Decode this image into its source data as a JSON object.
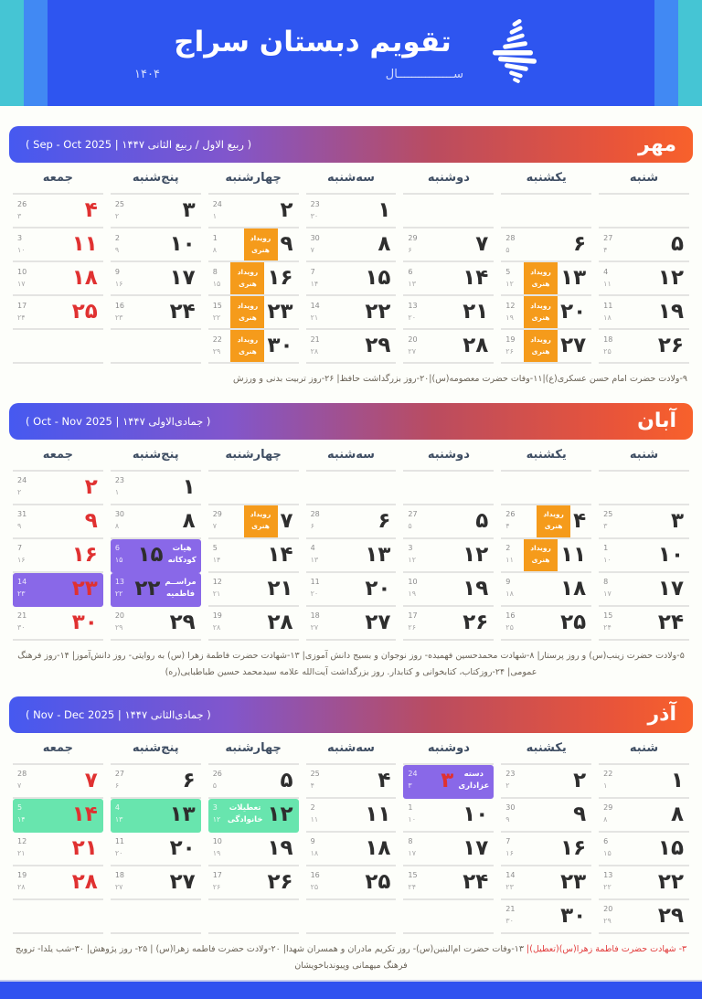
{
  "header": {
    "title": "تقویم دبستان سراج",
    "year_word": "ســــــــــــــــال",
    "year_digits": "۱۴۰۴",
    "logo": "seraj-spinning-top-logo"
  },
  "colors": {
    "header_blue": "#2E55F0",
    "stripe_teal": "#45C5D4",
    "stripe_light_blue": "#4189F3",
    "chip_orange": "#F59B1B",
    "event_purple": "#8968E8",
    "holiday_green": "#68E5AE",
    "friday_red": "#E03131",
    "footer_blue": "#3052F0"
  },
  "weekdays": [
    "شنبه",
    "یکشنبه",
    "دوشنبه",
    "سه‌شنبه",
    "چهارشنبه",
    "پنج‌شنبه",
    "جمعه"
  ],
  "chip_label": [
    "رویداد",
    "هنری"
  ],
  "months": [
    {
      "name": "مهر",
      "subtitle": "( ربیع الاول / ربیع الثانی ۱۴۴۷ | Sep - Oct 2025 )",
      "footnote_red": "",
      "footnote": "۹-ولادت حضرت امام حسن عسکری(ع)|۱۱-وفات حضرت معصومه(س)|۲۰-روز بزرگداشت حافظ| ۲۶-روز تربیت بدنی و ورزش",
      "weeks": [
        [
          null,
          null,
          null,
          {
            "d": "۱",
            "g": "23",
            "h": "۳۰"
          },
          {
            "d": "۲",
            "g": "24",
            "h": "۱"
          },
          {
            "d": "۳",
            "g": "25",
            "h": "۲"
          },
          {
            "d": "۴",
            "g": "26",
            "h": "۳",
            "red": true
          }
        ],
        [
          {
            "d": "۵",
            "g": "27",
            "h": "۴"
          },
          {
            "d": "۶",
            "g": "28",
            "h": "۵"
          },
          {
            "d": "۷",
            "g": "29",
            "h": "۶"
          },
          {
            "d": "۸",
            "g": "30",
            "h": "۷"
          },
          {
            "d": "۹",
            "g": "1",
            "h": "۸",
            "c": true
          },
          {
            "d": "۱۰",
            "g": "2",
            "h": "۹"
          },
          {
            "d": "۱۱",
            "g": "3",
            "h": "۱۰",
            "red": true
          }
        ],
        [
          {
            "d": "۱۲",
            "g": "4",
            "h": "۱۱"
          },
          {
            "d": "۱۳",
            "g": "5",
            "h": "۱۲",
            "c": true
          },
          {
            "d": "۱۴",
            "g": "6",
            "h": "۱۳"
          },
          {
            "d": "۱۵",
            "g": "7",
            "h": "۱۴"
          },
          {
            "d": "۱۶",
            "g": "8",
            "h": "۱۵",
            "c": true
          },
          {
            "d": "۱۷",
            "g": "9",
            "h": "۱۶"
          },
          {
            "d": "۱۸",
            "g": "10",
            "h": "۱۷",
            "red": true
          }
        ],
        [
          {
            "d": "۱۹",
            "g": "11",
            "h": "۱۸"
          },
          {
            "d": "۲۰",
            "g": "12",
            "h": "۱۹",
            "c": true
          },
          {
            "d": "۲۱",
            "g": "13",
            "h": "۲۰"
          },
          {
            "d": "۲۲",
            "g": "14",
            "h": "۲۱"
          },
          {
            "d": "۲۳",
            "g": "15",
            "h": "۲۲",
            "c": true
          },
          {
            "d": "۲۴",
            "g": "16",
            "h": "۲۳"
          },
          {
            "d": "۲۵",
            "g": "17",
            "h": "۲۴",
            "red": true
          }
        ],
        [
          {
            "d": "۲۶",
            "g": "18",
            "h": "۲۵"
          },
          {
            "d": "۲۷",
            "g": "19",
            "h": "۲۶",
            "c": true
          },
          {
            "d": "۲۸",
            "g": "20",
            "h": "۲۷"
          },
          {
            "d": "۲۹",
            "g": "21",
            "h": "۲۸"
          },
          {
            "d": "۳۰",
            "g": "22",
            "h": "۲۹",
            "c": true
          },
          null,
          null
        ]
      ]
    },
    {
      "name": "آبان",
      "subtitle": "( جمادی‌الاولی ۱۴۴۷ | Oct - Nov 2025 )",
      "footnote_red": "",
      "footnote": "۵-ولادت حضرت زینب(س) و روز پرستار| ۸-شهادت محمدحسین فهمیده- روز نوجوان و بسیج دانش آموزی| ۱۳-شهادت حضرت فاطمة زهرا (س) به روایتی- روز دانش‌آموز| ۱۴-روز فرهنگ عمومی| ۲۴-روزکتاب، کتابخوانی و کتابدار. روز بزرگداشت آیت‌الله علامه سیدمحمد حسین طباطبایی(ره)",
      "weeks": [
        [
          null,
          null,
          null,
          null,
          null,
          {
            "d": "۱",
            "g": "23",
            "h": "۱"
          },
          {
            "d": "۲",
            "g": "24",
            "h": "۲",
            "red": true
          }
        ],
        [
          {
            "d": "۳",
            "g": "25",
            "h": "۳"
          },
          {
            "d": "۴",
            "g": "26",
            "h": "۴",
            "c": true
          },
          {
            "d": "۵",
            "g": "27",
            "h": "۵"
          },
          {
            "d": "۶",
            "g": "28",
            "h": "۶"
          },
          {
            "d": "۷",
            "g": "29",
            "h": "۷",
            "c": true
          },
          {
            "d": "۸",
            "g": "30",
            "h": "۸"
          },
          {
            "d": "۹",
            "g": "31",
            "h": "۹",
            "red": true
          }
        ],
        [
          {
            "d": "۱۰",
            "g": "1",
            "h": "۱۰"
          },
          {
            "d": "۱۱",
            "g": "2",
            "h": "۱۱",
            "c": true
          },
          {
            "d": "۱۲",
            "g": "3",
            "h": "۱۲"
          },
          {
            "d": "۱۳",
            "g": "4",
            "h": "۱۳"
          },
          {
            "d": "۱۴",
            "g": "5",
            "h": "۱۴"
          },
          {
            "d": "۱۵",
            "g": "6",
            "h": "۱۵",
            "bg": "p",
            "lb": [
              "هیات",
              "کودکانه"
            ],
            "side": "r"
          },
          {
            "d": "۱۶",
            "g": "7",
            "h": "۱۶",
            "red": true
          }
        ],
        [
          {
            "d": "۱۷",
            "g": "8",
            "h": "۱۷"
          },
          {
            "d": "۱۸",
            "g": "9",
            "h": "۱۸"
          },
          {
            "d": "۱۹",
            "g": "10",
            "h": "۱۹"
          },
          {
            "d": "۲۰",
            "g": "11",
            "h": "۲۰"
          },
          {
            "d": "۲۱",
            "g": "12",
            "h": "۲۱"
          },
          {
            "d": "۲۲",
            "g": "13",
            "h": "۲۲",
            "bg": "p",
            "lb": [
              "مراســم",
              "فاطمیه"
            ],
            "side": "r"
          },
          {
            "d": "۲۳",
            "g": "14",
            "h": "۲۳",
            "red": true,
            "bg": "p"
          }
        ],
        [
          {
            "d": "۲۴",
            "g": "15",
            "h": "۲۴"
          },
          {
            "d": "۲۵",
            "g": "16",
            "h": "۲۵"
          },
          {
            "d": "۲۶",
            "g": "17",
            "h": "۲۶"
          },
          {
            "d": "۲۷",
            "g": "18",
            "h": "۲۷"
          },
          {
            "d": "۲۸",
            "g": "19",
            "h": "۲۸"
          },
          {
            "d": "۲۹",
            "g": "20",
            "h": "۲۹"
          },
          {
            "d": "۳۰",
            "g": "21",
            "h": "۳۰",
            "red": true
          }
        ]
      ]
    },
    {
      "name": "آذر",
      "subtitle": "( جمادی‌الثانی ۱۴۴۷ | Nov - Dec 2025 )",
      "footnote_red": "۳- شهادت حضرت فاطمة زهرا(س)(تعطیل)|",
      "footnote": "۱۳-وفات حضرت ام‌البنین(س)- روز تکریم مادران و همسران شهدا| ۲۰-ولادت حضرت فاطمه زهرا(س) | ۲۵- روز پژوهش| ۳۰-شب یلدا- ترویج فرهنگ میهمانی وپیوندباخویشان",
      "weeks": [
        [
          {
            "d": "۱",
            "g": "22",
            "h": "۱"
          },
          {
            "d": "۲",
            "g": "23",
            "h": "۲"
          },
          {
            "d": "۳",
            "g": "24",
            "h": "۳",
            "red": true,
            "bg": "p",
            "lb": [
              "دسته",
              "عزاداری"
            ],
            "side": "r"
          },
          {
            "d": "۴",
            "g": "25",
            "h": "۴"
          },
          {
            "d": "۵",
            "g": "26",
            "h": "۵"
          },
          {
            "d": "۶",
            "g": "27",
            "h": "۶"
          },
          {
            "d": "۷",
            "g": "28",
            "h": "۷",
            "red": true
          }
        ],
        [
          {
            "d": "۸",
            "g": "29",
            "h": "۸"
          },
          {
            "d": "۹",
            "g": "30",
            "h": "۹"
          },
          {
            "d": "۱۰",
            "g": "1",
            "h": "۱۰"
          },
          {
            "d": "۱۱",
            "g": "2",
            "h": "۱۱"
          },
          {
            "d": "۱۲",
            "g": "3",
            "h": "۱۲",
            "bg": "g",
            "lb": [
              "تعطیلات",
              "خانوادگی"
            ],
            "side": "l"
          },
          {
            "d": "۱۳",
            "g": "4",
            "h": "۱۳",
            "bg": "g"
          },
          {
            "d": "۱۴",
            "g": "5",
            "h": "۱۴",
            "red": true,
            "bg": "g"
          }
        ],
        [
          {
            "d": "۱۵",
            "g": "6",
            "h": "۱۵"
          },
          {
            "d": "۱۶",
            "g": "7",
            "h": "۱۶"
          },
          {
            "d": "۱۷",
            "g": "8",
            "h": "۱۷"
          },
          {
            "d": "۱۸",
            "g": "9",
            "h": "۱۸"
          },
          {
            "d": "۱۹",
            "g": "10",
            "h": "۱۹"
          },
          {
            "d": "۲۰",
            "g": "11",
            "h": "۲۰"
          },
          {
            "d": "۲۱",
            "g": "12",
            "h": "۲۱",
            "red": true
          }
        ],
        [
          {
            "d": "۲۲",
            "g": "13",
            "h": "۲۲"
          },
          {
            "d": "۲۳",
            "g": "14",
            "h": "۲۳"
          },
          {
            "d": "۲۴",
            "g": "15",
            "h": "۲۴"
          },
          {
            "d": "۲۵",
            "g": "16",
            "h": "۲۵"
          },
          {
            "d": "۲۶",
            "g": "17",
            "h": "۲۶"
          },
          {
            "d": "۲۷",
            "g": "18",
            "h": "۲۷"
          },
          {
            "d": "۲۸",
            "g": "19",
            "h": "۲۸",
            "red": true
          }
        ],
        [
          {
            "d": "۲۹",
            "g": "20",
            "h": "۲۹"
          },
          {
            "d": "۳۰",
            "g": "21",
            "h": "۳۰"
          },
          null,
          null,
          null,
          null,
          null
        ]
      ]
    }
  ]
}
